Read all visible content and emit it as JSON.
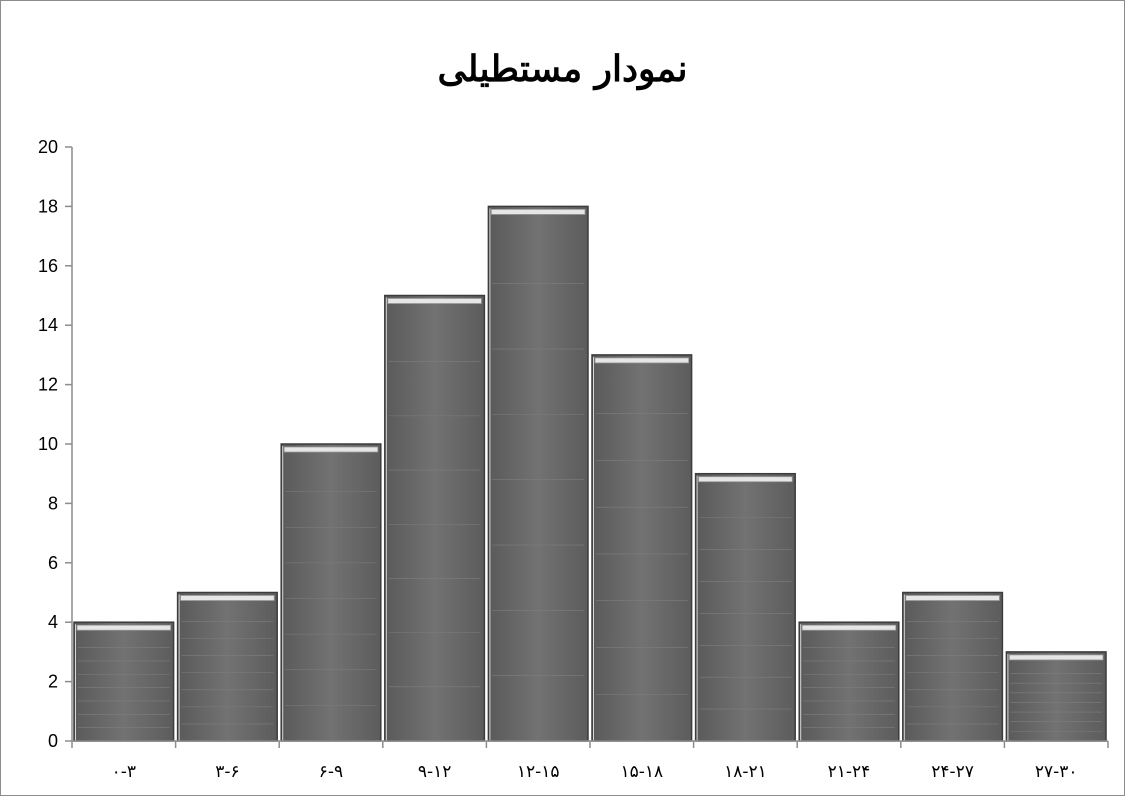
{
  "chart_data": {
    "type": "bar",
    "title": "نمودار مستطیلی",
    "categories": [
      "۰-۳",
      "۳-۶",
      "۶-۹",
      "۹-۱۲",
      "۱۲-۱۵",
      "۱۵-۱۸",
      "۱۸-۲۱",
      "۲۱-۲۴",
      "۲۴-۲۷",
      "۲۷-۳۰"
    ],
    "values": [
      4,
      5,
      10,
      15,
      18,
      13,
      9,
      4,
      5,
      3
    ],
    "ylim": [
      0,
      20
    ],
    "yticks": [
      0,
      2,
      4,
      6,
      8,
      10,
      12,
      14,
      16,
      18,
      20
    ],
    "xlabel": "",
    "ylabel": "",
    "grid": false,
    "legend": "none",
    "colors": {
      "bar_fill": "#6b6b6b",
      "bar_edge": "#3c3c3c",
      "bar_highlight": "#e6e6e6",
      "axis": "#8c8c8c"
    }
  }
}
